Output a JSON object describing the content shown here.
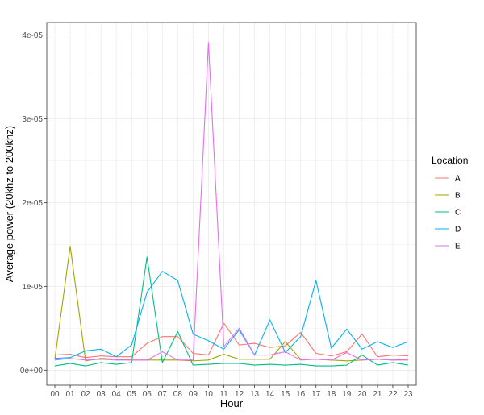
{
  "chart_data": {
    "type": "line",
    "xlabel": "Hour",
    "ylabel": "Average power (20khz to 200khz)",
    "categories": [
      "00",
      "01",
      "02",
      "03",
      "04",
      "05",
      "06",
      "07",
      "08",
      "09",
      "10",
      "11",
      "12",
      "13",
      "14",
      "15",
      "16",
      "17",
      "18",
      "19",
      "20",
      "21",
      "22",
      "23"
    ],
    "ylim": [
      -1.8e-06,
      4.15e-05
    ],
    "yticks": [
      {
        "value": 0,
        "label": "0e+00"
      },
      {
        "value": 1e-05,
        "label": "1e-05"
      },
      {
        "value": 2e-05,
        "label": "2e-05"
      },
      {
        "value": 3e-05,
        "label": "3e-05"
      },
      {
        "value": 4e-05,
        "label": "4e-05"
      }
    ],
    "grid": true,
    "legend": {
      "title": "Location",
      "position": "right"
    },
    "series": [
      {
        "name": "A",
        "color": "#F8766D",
        "values": [
          1.8e-06,
          1.9e-06,
          1.5e-06,
          1.7e-06,
          1.6e-06,
          1.6e-06,
          3.2e-06,
          4e-06,
          4e-06,
          2e-06,
          1.8e-06,
          5.6e-06,
          3e-06,
          3.2e-06,
          2.7e-06,
          2.9e-06,
          4.5e-06,
          2e-06,
          1.7e-06,
          2.2e-06,
          4.3e-06,
          1.6e-06,
          1.8e-06,
          1.7e-06
        ]
      },
      {
        "name": "B",
        "color": "#A3A500",
        "values": [
          1.3e-06,
          1.48e-05,
          1.1e-06,
          1.4e-06,
          1.3e-06,
          1.2e-06,
          1.2e-06,
          1.2e-06,
          1.2e-06,
          1.1e-06,
          1.2e-06,
          1.9e-06,
          1.3e-06,
          1.3e-06,
          1.3e-06,
          3.4e-06,
          1.3e-06,
          1.3e-06,
          1.2e-06,
          1.1e-06,
          1.2e-06,
          1.3e-06,
          1.2e-06,
          1.3e-06
        ]
      },
      {
        "name": "C",
        "color": "#00BF7D",
        "values": [
          5e-07,
          8e-07,
          5e-07,
          9e-07,
          7e-07,
          9e-07,
          1.35e-05,
          9e-07,
          4.6e-06,
          6e-07,
          7e-07,
          8e-07,
          8e-07,
          6e-07,
          7e-07,
          6e-07,
          7e-07,
          5e-07,
          5e-07,
          6e-07,
          1.8e-06,
          6e-07,
          9e-07,
          6e-07
        ]
      },
      {
        "name": "D",
        "color": "#00B0F6",
        "values": [
          1.4e-06,
          1.5e-06,
          2.3e-06,
          2.5e-06,
          1.6e-06,
          3e-06,
          9.3e-06,
          1.18e-05,
          1.07e-05,
          4.3e-06,
          3.5e-06,
          2.5e-06,
          4.8e-06,
          1.8e-06,
          6e-06,
          2.1e-06,
          4e-06,
          1.07e-05,
          2.6e-06,
          4.9e-06,
          2.5e-06,
          3.4e-06,
          2.7e-06,
          3.4e-06
        ]
      },
      {
        "name": "E",
        "color": "#E76BF3",
        "values": [
          1.2e-06,
          1.4e-06,
          1.2e-06,
          1.3e-06,
          1.2e-06,
          1.2e-06,
          1.2e-06,
          2.2e-06,
          1.2e-06,
          1.2e-06,
          3.91e-05,
          2.8e-06,
          5e-06,
          1.8e-06,
          1.8e-06,
          2.2e-06,
          1.2e-06,
          1.3e-06,
          1.2e-06,
          2.1e-06,
          1.2e-06,
          1.3e-06,
          1.2e-06,
          1.2e-06
        ]
      }
    ]
  }
}
